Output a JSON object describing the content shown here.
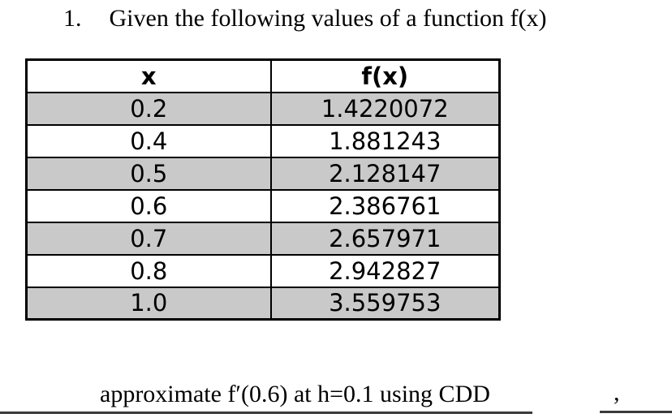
{
  "problem": {
    "number": "1.",
    "title": "Given the following values of a function f(x)",
    "question": "approximate f′(0.6) at h=0.1 using CDD",
    "trailing_comma": ","
  },
  "table": {
    "headers": [
      "x",
      "f(x)"
    ],
    "rows": [
      {
        "x": "0.2",
        "fx": "1.4220072"
      },
      {
        "x": "0.4",
        "fx": "1.881243"
      },
      {
        "x": "0.5",
        "fx": "2.128147"
      },
      {
        "x": "0.6",
        "fx": "2.386761"
      },
      {
        "x": "0.7",
        "fx": "2.657971"
      },
      {
        "x": "0.8",
        "fx": "2.942827"
      },
      {
        "x": "1.0",
        "fx": "3.559753"
      }
    ],
    "shaded_row_color": "#c9c9c9",
    "border_color": "#000000"
  },
  "rules": {
    "color": "#3a3a3a"
  }
}
